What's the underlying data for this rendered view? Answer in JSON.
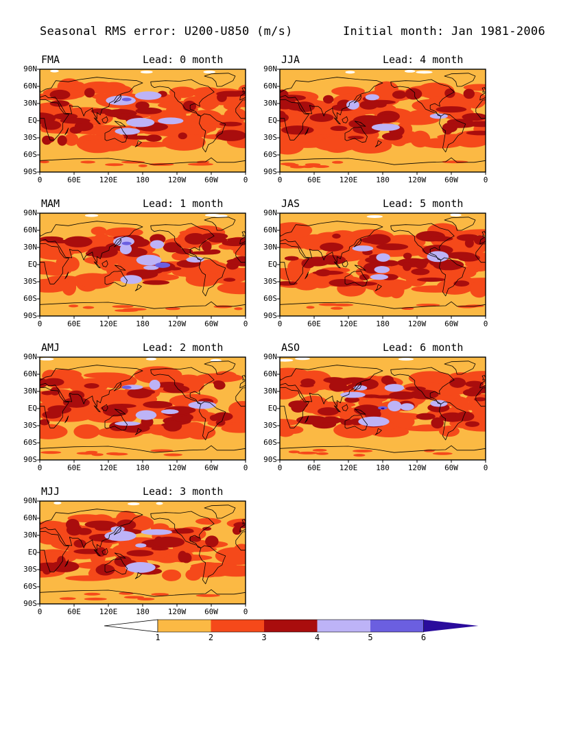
{
  "header": {
    "title_left": "Seasonal RMS error: U200-U850 (m/s)",
    "title_right": "Initial month: Jan 1981-2006"
  },
  "axes": {
    "lat_labels": [
      "90N",
      "60N",
      "30N",
      "EQ",
      "30S",
      "60S",
      "90S"
    ],
    "lon_labels": [
      "0",
      "60E",
      "120E",
      "180",
      "120W",
      "60W",
      "0"
    ]
  },
  "panels": [
    {
      "season": "FMA",
      "lead": "Lead: 0 month",
      "lead_months": 0
    },
    {
      "season": "JJA",
      "lead": "Lead: 4 month",
      "lead_months": 4
    },
    {
      "season": "MAM",
      "lead": "Lead: 1 month",
      "lead_months": 1
    },
    {
      "season": "JAS",
      "lead": "Lead: 5 month",
      "lead_months": 5
    },
    {
      "season": "AMJ",
      "lead": "Lead: 2 month",
      "lead_months": 2
    },
    {
      "season": "ASO",
      "lead": "Lead: 6 month",
      "lead_months": 6
    },
    {
      "season": "MJJ",
      "lead": "Lead: 3 month",
      "lead_months": 3
    }
  ],
  "colorbar": {
    "labels": [
      "1",
      "2",
      "3",
      "4",
      "5",
      "6"
    ],
    "colors": [
      "#ffffff",
      "#fbb944",
      "#f5491a",
      "#a90d0d",
      "#bdb3f7",
      "#6b5fe0",
      "#2a0c9c"
    ]
  },
  "colors": {
    "frame": "#000000",
    "coastline": "#000000"
  }
}
